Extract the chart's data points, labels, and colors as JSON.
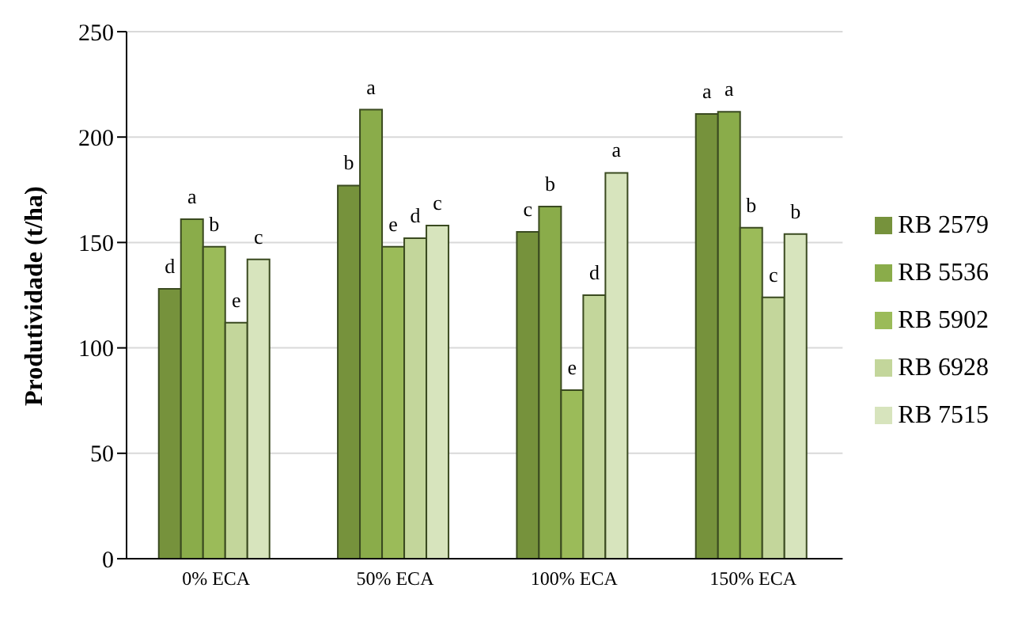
{
  "chart_data": {
    "type": "bar",
    "ylabel": "Produtividade (t/ha)",
    "categories": [
      "0% ECA",
      "50% ECA",
      "100% ECA",
      "150% ECA"
    ],
    "series": [
      {
        "name": "RB 2579",
        "color": "#76923c",
        "values": [
          128,
          177,
          155,
          211
        ],
        "value_labels": [
          "d",
          "b",
          "c",
          "a"
        ]
      },
      {
        "name": "RB 5536",
        "color": "#8aac4a",
        "values": [
          161,
          213,
          167,
          212
        ],
        "value_labels": [
          "a",
          "a",
          "b",
          "a"
        ]
      },
      {
        "name": "RB 5902",
        "color": "#9bbb59",
        "values": [
          148,
          148,
          80,
          157
        ],
        "value_labels": [
          "b",
          "e",
          "e",
          "b"
        ]
      },
      {
        "name": "RB 6928",
        "color": "#c3d69b",
        "values": [
          112,
          152,
          125,
          124
        ],
        "value_labels": [
          "e",
          "d",
          "d",
          "c"
        ]
      },
      {
        "name": "RB 7515",
        "color": "#d7e4bd",
        "values": [
          142,
          158,
          183,
          154
        ],
        "value_labels": [
          "c",
          "c",
          "a",
          "b"
        ]
      }
    ],
    "ylim": [
      0,
      250
    ],
    "yticks": [
      0,
      50,
      100,
      150,
      200,
      250
    ],
    "grid": "y",
    "legend": "right"
  }
}
